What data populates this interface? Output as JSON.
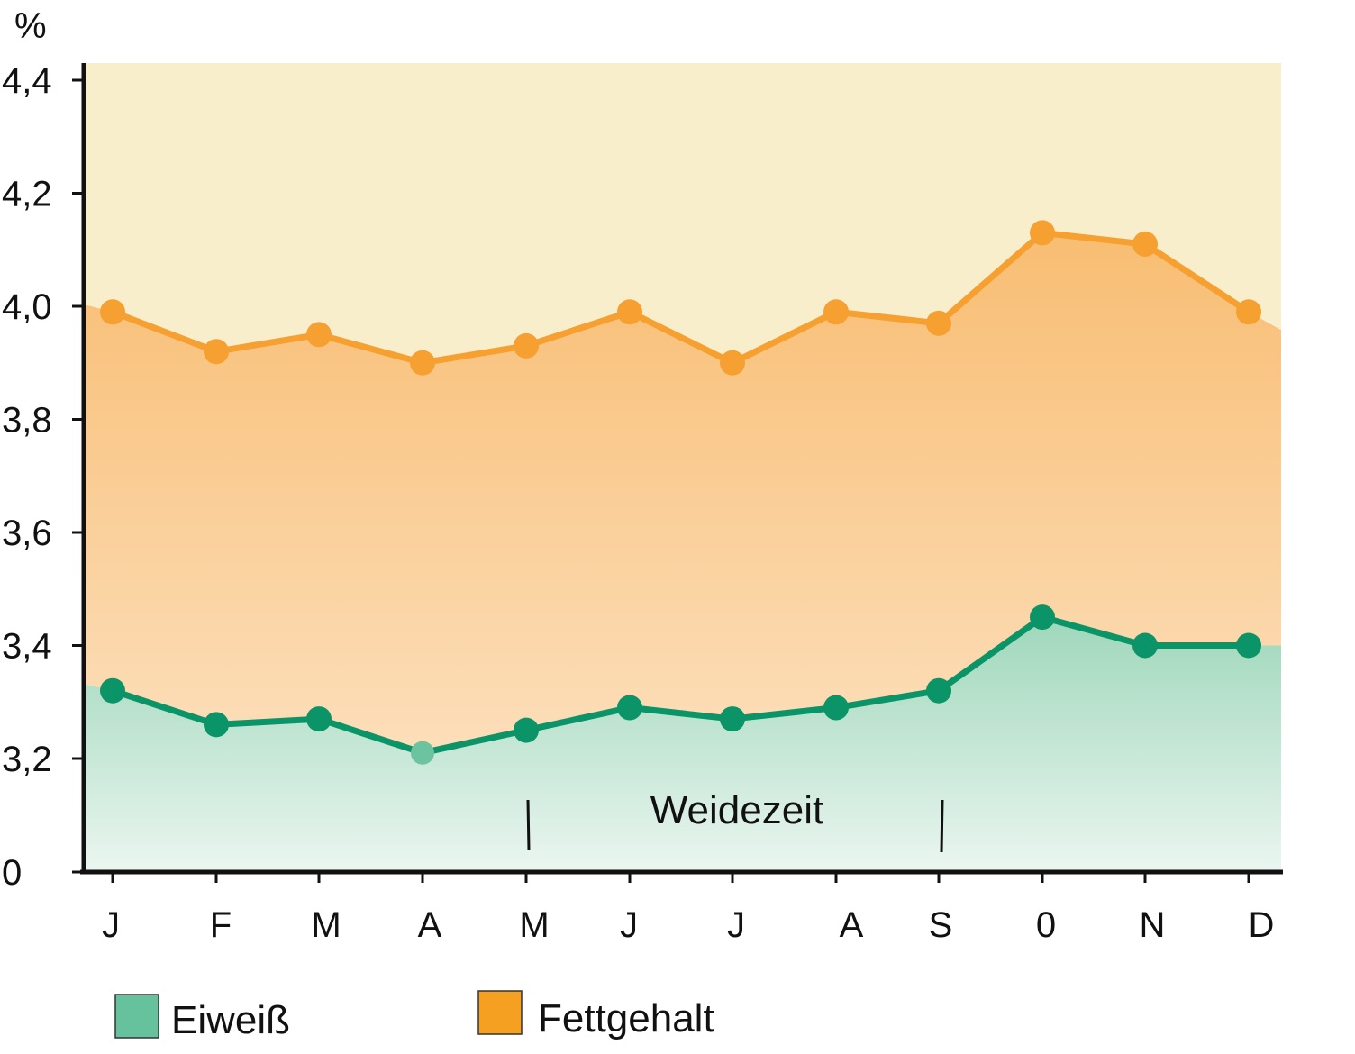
{
  "chart_data": {
    "type": "line",
    "title": "",
    "ylabel": "%",
    "xlabel": "",
    "categories": [
      "J",
      "F",
      "M",
      "A",
      "M",
      "J",
      "J",
      "A",
      "S",
      "0",
      "N",
      "D"
    ],
    "yticks": [
      0,
      3.2,
      3.4,
      3.6,
      3.8,
      4.0,
      4.2,
      4.4
    ],
    "ytick_labels": [
      "0",
      "3,2",
      "3,4",
      "3,6",
      "3,8",
      "4,0",
      "4,2",
      "4,4"
    ],
    "axis_break_below": 3.2,
    "series": [
      {
        "name": "Fettgehalt",
        "color": "#f5a031",
        "values": [
          3.99,
          3.92,
          3.95,
          3.9,
          3.93,
          3.99,
          3.9,
          3.99,
          3.97,
          4.13,
          4.11,
          3.99
        ]
      },
      {
        "name": "Eiweiß",
        "color": "#0b9467",
        "values": [
          3.32,
          3.26,
          3.27,
          3.21,
          3.25,
          3.29,
          3.27,
          3.29,
          3.32,
          3.45,
          3.4,
          3.4
        ]
      }
    ],
    "highlight_point": {
      "series": "Eiweiß",
      "index": 3,
      "color": "#6cc39f"
    },
    "annotation": {
      "text": "Weidezeit",
      "from_index": 4,
      "to_index": 8
    },
    "legend": {
      "placement": "bottom",
      "items": [
        {
          "label": "Eiweiß",
          "color": "#66c19d"
        },
        {
          "label": "Fettgehalt",
          "color": "#f5a021"
        }
      ]
    },
    "background_colors": {
      "top": "#f9eecb",
      "fat_band": "#f8c078",
      "protein_band": "#a7dcc1"
    },
    "grid": false
  }
}
